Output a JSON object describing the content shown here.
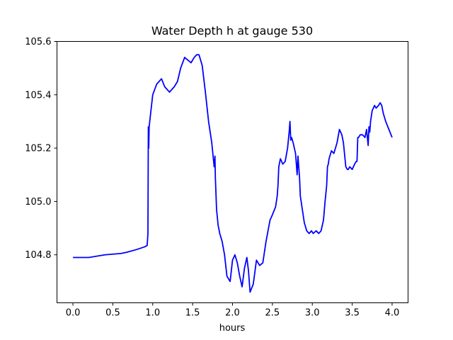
{
  "chart_data": {
    "type": "line",
    "title": "Water Depth h at gauge 530",
    "xlabel": "hours",
    "ylabel": "",
    "xlim": [
      -0.2,
      4.2
    ],
    "ylim": [
      104.62,
      105.6
    ],
    "xticks": [
      0.0,
      0.5,
      1.0,
      1.5,
      2.0,
      2.5,
      3.0,
      3.5,
      4.0
    ],
    "xtick_labels": [
      "0.0",
      "0.5",
      "1.0",
      "1.5",
      "2.0",
      "2.5",
      "3.0",
      "3.5",
      "4.0"
    ],
    "yticks": [
      104.8,
      105.0,
      105.2,
      105.4,
      105.6
    ],
    "ytick_labels": [
      "104.8",
      "105.0",
      "105.2",
      "105.4",
      "105.6"
    ],
    "grid": false,
    "series": [
      {
        "color": "#0000ff",
        "x": [
          0.0,
          0.2,
          0.4,
          0.6,
          0.68,
          0.8,
          0.9,
          0.93,
          0.94,
          0.945,
          0.95,
          0.955,
          0.97,
          1.0,
          1.05,
          1.08,
          1.11,
          1.15,
          1.18,
          1.21,
          1.24,
          1.27,
          1.31,
          1.35,
          1.4,
          1.44,
          1.48,
          1.52,
          1.55,
          1.58,
          1.62,
          1.66,
          1.7,
          1.74,
          1.77,
          1.78,
          1.785,
          1.79,
          1.8,
          1.82,
          1.84,
          1.87,
          1.9,
          1.93,
          1.97,
          2.0,
          2.03,
          2.06,
          2.09,
          2.12,
          2.15,
          2.18,
          2.2,
          2.22,
          2.26,
          2.3,
          2.34,
          2.38,
          2.42,
          2.47,
          2.5,
          2.54,
          2.56,
          2.57,
          2.58,
          2.6,
          2.63,
          2.66,
          2.69,
          2.71,
          2.72,
          2.73,
          2.74,
          2.76,
          2.79,
          2.81,
          2.82,
          2.83,
          2.84,
          2.85,
          2.9,
          2.93,
          2.96,
          2.99,
          3.01,
          3.05,
          3.08,
          3.11,
          3.14,
          3.16,
          3.18,
          3.19,
          3.2,
          3.21,
          3.24,
          3.27,
          3.31,
          3.34,
          3.37,
          3.39,
          3.42,
          3.44,
          3.45,
          3.47,
          3.5,
          3.53,
          3.55,
          3.56,
          3.57,
          3.58,
          3.6,
          3.63,
          3.66,
          3.68,
          3.7,
          3.71,
          3.72,
          3.73,
          3.75,
          3.78,
          3.8,
          3.83,
          3.85,
          3.87,
          3.89,
          3.92,
          3.96,
          4.0
        ],
        "y": [
          104.79,
          104.79,
          104.8,
          104.805,
          104.81,
          104.82,
          104.83,
          104.835,
          104.88,
          105.28,
          105.2,
          105.28,
          105.32,
          105.4,
          105.44,
          105.45,
          105.46,
          105.43,
          105.42,
          105.41,
          105.42,
          105.43,
          105.45,
          105.5,
          105.54,
          105.53,
          105.52,
          105.54,
          105.55,
          105.55,
          105.51,
          105.41,
          105.3,
          105.22,
          105.13,
          105.17,
          105.09,
          105.05,
          104.97,
          104.91,
          104.88,
          104.85,
          104.8,
          104.72,
          104.7,
          104.78,
          104.8,
          104.77,
          104.72,
          104.68,
          104.75,
          104.79,
          104.74,
          104.66,
          104.69,
          104.78,
          104.76,
          104.77,
          104.85,
          104.93,
          104.95,
          104.98,
          105.02,
          105.06,
          105.13,
          105.16,
          105.14,
          105.15,
          105.2,
          105.26,
          105.3,
          105.23,
          105.24,
          105.22,
          105.18,
          105.1,
          105.17,
          105.13,
          105.09,
          105.02,
          104.92,
          104.89,
          104.88,
          104.89,
          104.88,
          104.89,
          104.88,
          104.89,
          104.93,
          105.0,
          105.06,
          105.13,
          105.14,
          105.16,
          105.19,
          105.18,
          105.22,
          105.27,
          105.25,
          105.22,
          105.13,
          105.12,
          105.12,
          105.13,
          105.12,
          105.14,
          105.15,
          105.15,
          105.24,
          105.24,
          105.25,
          105.25,
          105.24,
          105.27,
          105.21,
          105.28,
          105.26,
          105.3,
          105.34,
          105.36,
          105.35,
          105.36,
          105.37,
          105.36,
          105.33,
          105.3,
          105.27,
          105.24
        ]
      }
    ]
  }
}
